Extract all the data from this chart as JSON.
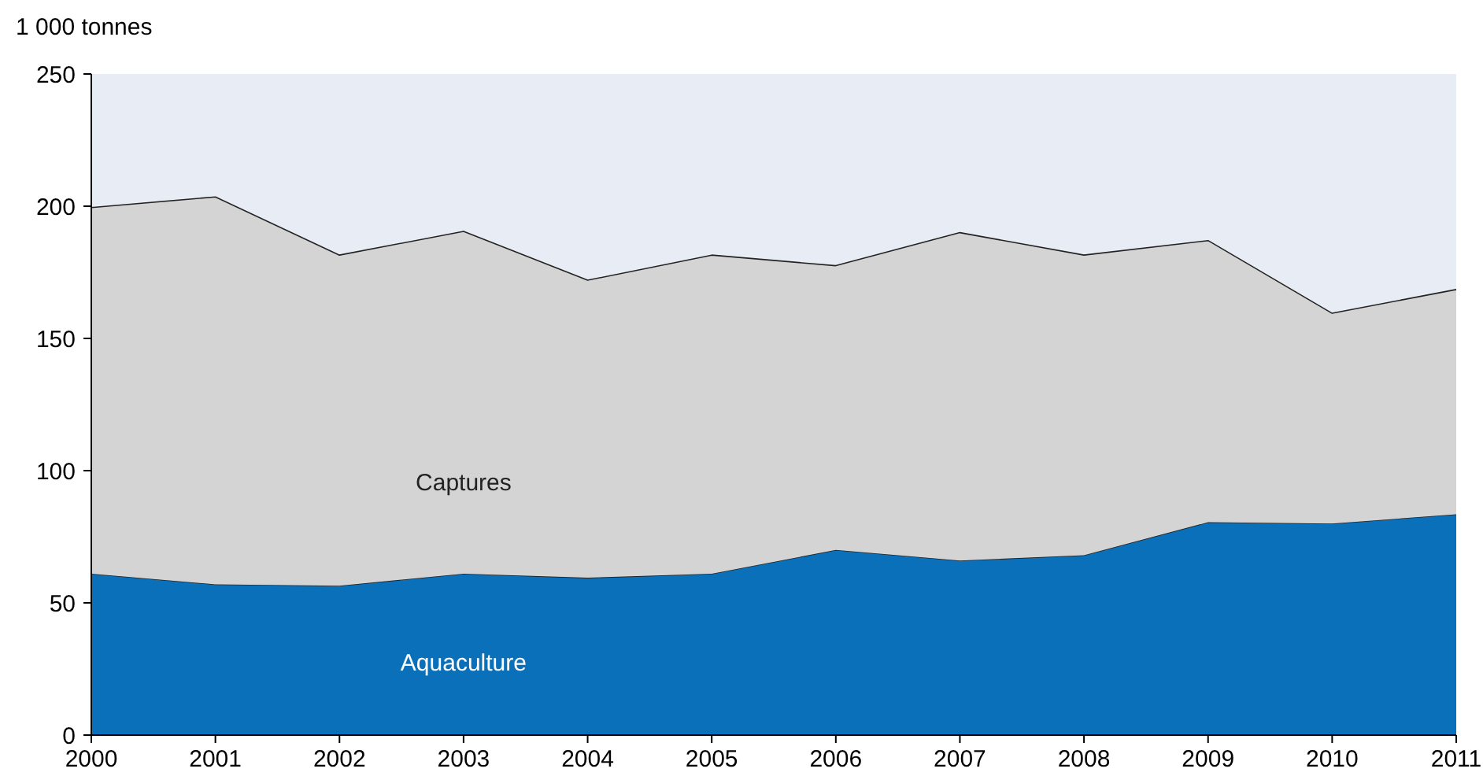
{
  "chart_data": {
    "type": "area",
    "stacked": true,
    "ylabel": "1 000 tonnes",
    "x": [
      2000,
      2001,
      2002,
      2003,
      2004,
      2005,
      2006,
      2007,
      2008,
      2009,
      2010,
      2011
    ],
    "xlim": [
      2000,
      2011
    ],
    "xticks": [
      2000,
      2001,
      2002,
      2003,
      2004,
      2005,
      2006,
      2007,
      2008,
      2009,
      2010,
      2011
    ],
    "ylim": [
      0,
      250
    ],
    "yticks": [
      0,
      50,
      100,
      150,
      200,
      250
    ],
    "grid": false,
    "series": [
      {
        "name": "Aquaculture",
        "color": "#0a70ba",
        "values": [
          61,
          57,
          56.5,
          61,
          59.5,
          61,
          70,
          66,
          68,
          80.5,
          80,
          83.5
        ]
      },
      {
        "name": "Captures",
        "color": "#d4d4d4",
        "values": [
          138.5,
          146.5,
          125,
          129.5,
          112.5,
          120.5,
          107.5,
          124,
          113.5,
          106.5,
          79.5,
          85
        ]
      }
    ]
  }
}
